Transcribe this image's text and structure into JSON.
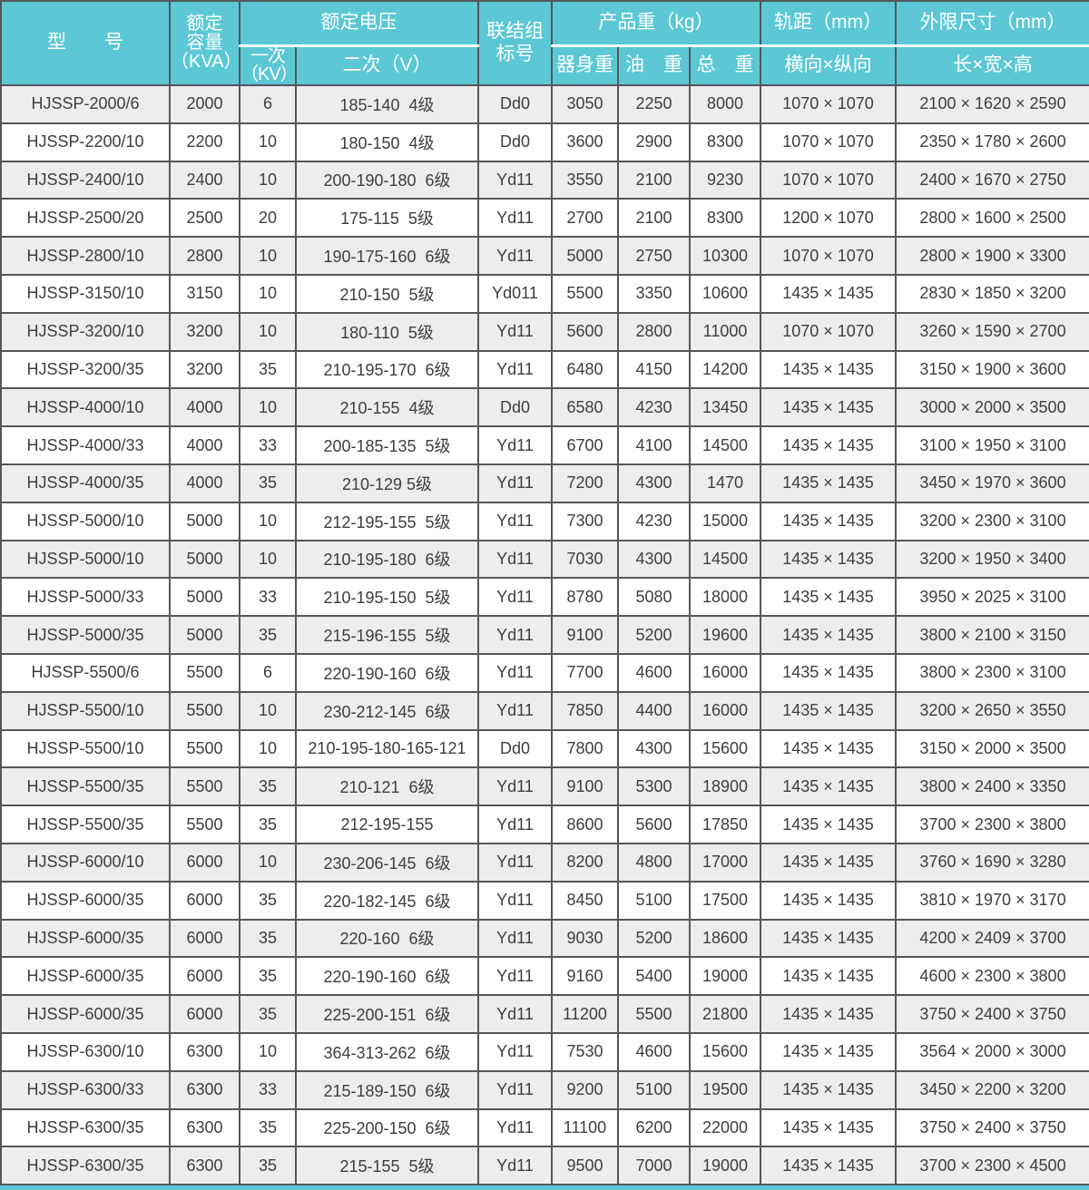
{
  "colors": {
    "header_bg": "#5cc8d5",
    "header_text": "#ffffff",
    "border": "#55565a",
    "row_odd_bg": "#ededee",
    "row_even_bg": "#ffffff",
    "text": "#3e3e3e",
    "bottom_strip": "#5cc8d5"
  },
  "table": {
    "header": {
      "model": "型　　号",
      "capacity_lines": [
        "额定",
        "容量",
        "（KVA）"
      ],
      "voltage_group": "额定电压",
      "primary_lines": [
        "一次",
        "（KV）"
      ],
      "secondary": "二次（V）",
      "connection_lines": [
        "联结组",
        "标号"
      ],
      "weight_group": "产品重（kg）",
      "body_weight": "器身重",
      "oil_weight": "油　重",
      "total_weight": "总　重",
      "gauge_group": "轨距（mm）",
      "gauge": "横向×纵向",
      "dims_group": "外限尺寸（mm）",
      "dims": "长×宽×高"
    },
    "rows": [
      [
        "HJSSP-2000/6",
        "2000",
        "6",
        "185-140  4级",
        "Dd0",
        "3050",
        "2250",
        "8000",
        "1070 × 1070",
        "2100 × 1620 × 2590"
      ],
      [
        "HJSSP-2200/10",
        "2200",
        "10",
        "180-150  4级",
        "Dd0",
        "3600",
        "2900",
        "8300",
        "1070 × 1070",
        "2350 × 1780 × 2600"
      ],
      [
        "HJSSP-2400/10",
        "2400",
        "10",
        "200-190-180  6级",
        "Yd11",
        "3550",
        "2100",
        "9230",
        "1070 × 1070",
        "2400 × 1670 × 2750"
      ],
      [
        "HJSSP-2500/20",
        "2500",
        "20",
        "175-115  5级",
        "Yd11",
        "2700",
        "2100",
        "8300",
        "1200 × 1070",
        "2800 × 1600 × 2500"
      ],
      [
        "HJSSP-2800/10",
        "2800",
        "10",
        "190-175-160  6级",
        "Yd11",
        "5000",
        "2750",
        "10300",
        "1070 × 1070",
        "2800 × 1900 × 3300"
      ],
      [
        "HJSSP-3150/10",
        "3150",
        "10",
        "210-150  5级",
        "Yd011",
        "5500",
        "3350",
        "10600",
        "1435 × 1435",
        "2830 × 1850 × 3200"
      ],
      [
        "HJSSP-3200/10",
        "3200",
        "10",
        "180-110  5级",
        "Yd11",
        "5600",
        "2800",
        "11000",
        "1070 × 1070",
        "3260 × 1590 × 2700"
      ],
      [
        "HJSSP-3200/35",
        "3200",
        "35",
        "210-195-170  6级",
        "Yd11",
        "6480",
        "4150",
        "14200",
        "1435 × 1435",
        "3150 × 1900 × 3600"
      ],
      [
        "HJSSP-4000/10",
        "4000",
        "10",
        "210-155  4级",
        "Dd0",
        "6580",
        "4230",
        "13450",
        "1435 × 1435",
        "3000 × 2000 × 3500"
      ],
      [
        "HJSSP-4000/33",
        "4000",
        "33",
        "200-185-135  5级",
        "Yd11",
        "6700",
        "4100",
        "14500",
        "1435 × 1435",
        "3100 × 1950 × 3100"
      ],
      [
        "HJSSP-4000/35",
        "4000",
        "35",
        "210-129 5级",
        "Yd11",
        "7200",
        "4300",
        "1470",
        "1435 × 1435",
        "3450 × 1970 × 3600"
      ],
      [
        "HJSSP-5000/10",
        "5000",
        "10",
        "212-195-155  5级",
        "Yd11",
        "7300",
        "4230",
        "15000",
        "1435 × 1435",
        "3200 × 2300 × 3100"
      ],
      [
        "HJSSP-5000/10",
        "5000",
        "10",
        "210-195-180  6级",
        "Yd11",
        "7030",
        "4300",
        "14500",
        "1435 × 1435",
        "3200 × 1950 × 3400"
      ],
      [
        "HJSSP-5000/33",
        "5000",
        "33",
        "210-195-150  5级",
        "Yd11",
        "8780",
        "5080",
        "18000",
        "1435 × 1435",
        "3950 × 2025 × 3100"
      ],
      [
        "HJSSP-5000/35",
        "5000",
        "35",
        "215-196-155  5级",
        "Yd11",
        "9100",
        "5200",
        "19600",
        "1435 × 1435",
        "3800 × 2100 × 3150"
      ],
      [
        "HJSSP-5500/6",
        "5500",
        "6",
        "220-190-160  6级",
        "Yd11",
        "7700",
        "4600",
        "16000",
        "1435 × 1435",
        "3800 × 2300 × 3100"
      ],
      [
        "HJSSP-5500/10",
        "5500",
        "10",
        "230-212-145  6级",
        "Yd11",
        "7850",
        "4400",
        "16000",
        "1435 × 1435",
        "3200 × 2650 × 3550"
      ],
      [
        "HJSSP-5500/10",
        "5500",
        "10",
        "210-195-180-165-121",
        "Dd0",
        "7800",
        "4300",
        "15600",
        "1435 × 1435",
        "3150 × 2000 × 3500"
      ],
      [
        "HJSSP-5500/35",
        "5500",
        "35",
        "210-121  6级",
        "Yd11",
        "9100",
        "5300",
        "18900",
        "1435 × 1435",
        "3800 × 2400 × 3350"
      ],
      [
        "HJSSP-5500/35",
        "5500",
        "35",
        "212-195-155",
        "Yd11",
        "8600",
        "5600",
        "17850",
        "1435 × 1435",
        "3700 × 2300 × 3800"
      ],
      [
        "HJSSP-6000/10",
        "6000",
        "10",
        "230-206-145  6级",
        "Yd11",
        "8200",
        "4800",
        "17000",
        "1435 × 1435",
        "3760 × 1690 × 3280"
      ],
      [
        "HJSSP-6000/35",
        "6000",
        "35",
        "220-182-145  6级",
        "Yd11",
        "8450",
        "5100",
        "17500",
        "1435 × 1435",
        "3810 × 1970 × 3170"
      ],
      [
        "HJSSP-6000/35",
        "6000",
        "35",
        "220-160  6级",
        "Yd11",
        "9030",
        "5200",
        "18600",
        "1435 × 1435",
        "4200 × 2409 × 3700"
      ],
      [
        "HJSSP-6000/35",
        "6000",
        "35",
        "220-190-160  6级",
        "Yd11",
        "9160",
        "5400",
        "19000",
        "1435 × 1435",
        "4600 × 2300 × 3800"
      ],
      [
        "HJSSP-6000/35",
        "6000",
        "35",
        "225-200-151  6级",
        "Yd11",
        "11200",
        "5500",
        "21800",
        "1435 × 1435",
        "3750 × 2400 × 3750"
      ],
      [
        "HJSSP-6300/10",
        "6300",
        "10",
        "364-313-262  6级",
        "Yd11",
        "7530",
        "4600",
        "15600",
        "1435 × 1435",
        "3564 × 2000 × 3000"
      ],
      [
        "HJSSP-6300/33",
        "6300",
        "33",
        "215-189-150  6级",
        "Yd11",
        "9200",
        "5100",
        "19500",
        "1435 × 1435",
        "3450 × 2200 × 3200"
      ],
      [
        "HJSSP-6300/35",
        "6300",
        "35",
        "225-200-150  6级",
        "Yd11",
        "11100",
        "6200",
        "22000",
        "1435 × 1435",
        "3750 × 2400 × 3750"
      ],
      [
        "HJSSP-6300/35",
        "6300",
        "35",
        "215-155  5级",
        "Yd11",
        "9500",
        "7000",
        "19000",
        "1435 × 1435",
        "3700 × 2300 × 4500"
      ]
    ]
  }
}
